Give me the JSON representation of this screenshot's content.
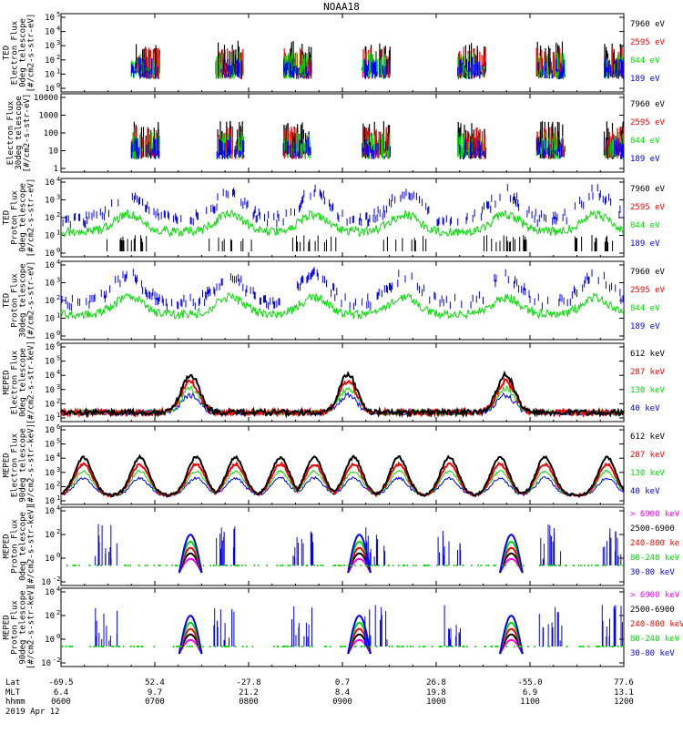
{
  "title": "NOAA18",
  "colors": {
    "black": "#000000",
    "red": "#ff0000",
    "green": "#00dd00",
    "blue": "#0000ff",
    "magenta": "#ff00ff",
    "axis": "#000000"
  },
  "panels": [
    {
      "ylabel": [
        "TED",
        "Electron Flux",
        "0deg telescope",
        "[#/cm2-s-str-eV]"
      ],
      "yticks": [
        {
          "label": "10",
          "sup": "0"
        },
        {
          "label": "10",
          "sup": "1"
        },
        {
          "label": "10",
          "sup": "2"
        },
        {
          "label": "10",
          "sup": "3"
        },
        {
          "label": "10",
          "sup": "4"
        },
        {
          "label": "10",
          "sup": "5"
        }
      ],
      "legend": [
        {
          "text": "7960 eV",
          "color": "black"
        },
        {
          "text": "2595 eV",
          "color": "red"
        },
        {
          "text": "844 eV",
          "color": "green"
        },
        {
          "text": "189 eV",
          "color": "blue"
        }
      ]
    },
    {
      "ylabel": [
        "Electron Flux",
        "30deg telescope",
        "[#/cm2-s-str-eV]"
      ],
      "yticks": [
        {
          "label": "1",
          "sup": ""
        },
        {
          "label": "10",
          "sup": ""
        },
        {
          "label": "100",
          "sup": ""
        },
        {
          "label": "1000",
          "sup": ""
        },
        {
          "label": "10000",
          "sup": ""
        }
      ],
      "legend": [
        {
          "text": "7960 eV",
          "color": "black"
        },
        {
          "text": "2595 eV",
          "color": "red"
        },
        {
          "text": "844 eV",
          "color": "green"
        },
        {
          "text": "189 eV",
          "color": "blue"
        }
      ]
    },
    {
      "ylabel": [
        "TED",
        "Proton Flux",
        "0deg telescope",
        "[#/cm2-s-str-eV]"
      ],
      "yticks": [
        {
          "label": "10",
          "sup": "0"
        },
        {
          "label": "10",
          "sup": "1"
        },
        {
          "label": "10",
          "sup": "2"
        },
        {
          "label": "10",
          "sup": "3"
        },
        {
          "label": "10",
          "sup": "4"
        }
      ],
      "legend": [
        {
          "text": "7960 eV",
          "color": "black"
        },
        {
          "text": "2595 eV",
          "color": "red"
        },
        {
          "text": "844 eV",
          "color": "green"
        },
        {
          "text": "189 eV",
          "color": "blue"
        }
      ]
    },
    {
      "ylabel": [
        "TED",
        "Proton Flux",
        "30deg telescope",
        "[#/cm2-s-str-eV]"
      ],
      "yticks": [
        {
          "label": "10",
          "sup": "0"
        },
        {
          "label": "10",
          "sup": "1"
        },
        {
          "label": "10",
          "sup": "2"
        },
        {
          "label": "10",
          "sup": "3"
        },
        {
          "label": "10",
          "sup": "4"
        }
      ],
      "legend": [
        {
          "text": "7960 eV",
          "color": "black"
        },
        {
          "text": "2595 eV",
          "color": "red"
        },
        {
          "text": "844 eV",
          "color": "green"
        },
        {
          "text": "189 eV",
          "color": "blue"
        }
      ]
    },
    {
      "ylabel": [
        "MEPED",
        "Electron Flux",
        "0deg telescope",
        "[#/cm2-s-str-keV]"
      ],
      "yticks": [
        {
          "label": "10",
          "sup": "1"
        },
        {
          "label": "10",
          "sup": "2"
        },
        {
          "label": "10",
          "sup": "3"
        },
        {
          "label": "10",
          "sup": "4"
        },
        {
          "label": "10",
          "sup": "5"
        },
        {
          "label": "10",
          "sup": "6"
        }
      ],
      "legend": [
        {
          "text": "612 keV",
          "color": "black"
        },
        {
          "text": "287 keV",
          "color": "red"
        },
        {
          "text": "130 keV",
          "color": "green"
        },
        {
          "text": "40 keV",
          "color": "blue"
        }
      ]
    },
    {
      "ylabel": [
        "MEPED",
        "Electron Flux",
        "90deg telescope",
        "[#/cm2-s-str-keV]"
      ],
      "yticks": [
        {
          "label": "10",
          "sup": "1"
        },
        {
          "label": "10",
          "sup": "2"
        },
        {
          "label": "10",
          "sup": "3"
        },
        {
          "label": "10",
          "sup": "4"
        },
        {
          "label": "10",
          "sup": "5"
        },
        {
          "label": "10",
          "sup": "6"
        }
      ],
      "legend": [
        {
          "text": "612 keV",
          "color": "black"
        },
        {
          "text": "287 keV",
          "color": "red"
        },
        {
          "text": "130 keV",
          "color": "green"
        },
        {
          "text": "40 keV",
          "color": "blue"
        }
      ]
    },
    {
      "ylabel": [
        "MEPED",
        "Proton Flux",
        "0deg telescope",
        "[#/cm2-s-str-keV]"
      ],
      "yticks": [
        {
          "label": "10",
          "sup": "-2"
        },
        {
          "label": "10",
          "sup": "0"
        },
        {
          "label": "10",
          "sup": "2"
        },
        {
          "label": "10",
          "sup": "4"
        }
      ],
      "legend": [
        {
          "text": "> 6900 keV",
          "color": "magenta"
        },
        {
          "text": "2500-6900",
          "color": "black"
        },
        {
          "text": "240-800 ke",
          "color": "red"
        },
        {
          "text": "80-240 keV",
          "color": "green"
        },
        {
          "text": "30-80 keV",
          "color": "blue"
        }
      ]
    },
    {
      "ylabel": [
        "MEPED",
        "Proton Flux",
        "90deg telescope",
        "[#/cm2-s-str-keV]"
      ],
      "yticks": [
        {
          "label": "10",
          "sup": "-2"
        },
        {
          "label": "10",
          "sup": "0"
        },
        {
          "label": "10",
          "sup": "2"
        },
        {
          "label": "10",
          "sup": "4"
        }
      ],
      "legend": [
        {
          "text": "> 6900 keV",
          "color": "magenta"
        },
        {
          "text": "2500-6900",
          "color": "black"
        },
        {
          "text": "240-800 keV",
          "color": "red"
        },
        {
          "text": "80-240 keV",
          "color": "green"
        },
        {
          "text": "30-80 keV",
          "color": "blue"
        }
      ]
    }
  ],
  "footer": {
    "row_labels": [
      "Lat",
      "MLT",
      "hhmm",
      "2019 Apr 12"
    ],
    "columns": [
      {
        "lat": "-69.5",
        "mlt": "6.4",
        "time": "0600"
      },
      {
        "lat": "52.4",
        "mlt": "9.7",
        "time": "0700"
      },
      {
        "lat": "-27.8",
        "mlt": "21.2",
        "time": "0800"
      },
      {
        "lat": "0.7",
        "mlt": "8.4",
        "time": "0900"
      },
      {
        "lat": "26.8",
        "mlt": "19.8",
        "time": "1000"
      },
      {
        "lat": "-55.0",
        "mlt": "6.9",
        "time": "1100"
      },
      {
        "lat": "77.6",
        "mlt": "13.1",
        "time": "1200"
      }
    ]
  },
  "chart_data": {
    "type": "line",
    "title": "NOAA18",
    "x": {
      "label": "hhmm",
      "start": "0600",
      "end": "1200",
      "ticks": [
        "0600",
        "0700",
        "0800",
        "0900",
        "1000",
        "1100",
        "1200"
      ]
    },
    "scale": "log",
    "panels": [
      {
        "name": "TED Electron Flux 0deg",
        "series": [
          "7960 eV",
          "2595 eV",
          "844 eV",
          "189 eV"
        ],
        "ylim_log10": [
          0,
          5
        ]
      },
      {
        "name": "TED Electron Flux 30deg",
        "series": [
          "7960 eV",
          "2595 eV",
          "844 eV",
          "189 eV"
        ],
        "ylim_log10": [
          0,
          4
        ]
      },
      {
        "name": "TED Proton Flux 0deg",
        "series": [
          "7960 eV",
          "2595 eV",
          "844 eV",
          "189 eV"
        ],
        "ylim_log10": [
          0,
          4
        ]
      },
      {
        "name": "TED Proton Flux 30deg",
        "series": [
          "7960 eV",
          "2595 eV",
          "844 eV",
          "189 eV"
        ],
        "ylim_log10": [
          0,
          4
        ]
      },
      {
        "name": "MEPED Electron Flux 0deg",
        "series": [
          "612 keV",
          "287 keV",
          "130 keV",
          "40 keV"
        ],
        "ylim_log10": [
          1,
          6
        ]
      },
      {
        "name": "MEPED Electron Flux 90deg",
        "series": [
          "612 keV",
          "287 keV",
          "130 keV",
          "40 keV"
        ],
        "ylim_log10": [
          1,
          6
        ]
      },
      {
        "name": "MEPED Proton Flux 0deg",
        "series": [
          "> 6900 keV",
          "2500-6900",
          "240-800 keV",
          "80-240 keV",
          "30-80 keV"
        ],
        "ylim_log10": [
          -2,
          4
        ]
      },
      {
        "name": "MEPED Proton Flux 90deg",
        "series": [
          "> 6900 keV",
          "2500-6900",
          "240-800 keV",
          "80-240 keV",
          "30-80 keV"
        ],
        "ylim_log10": [
          -2,
          4
        ]
      }
    ]
  }
}
